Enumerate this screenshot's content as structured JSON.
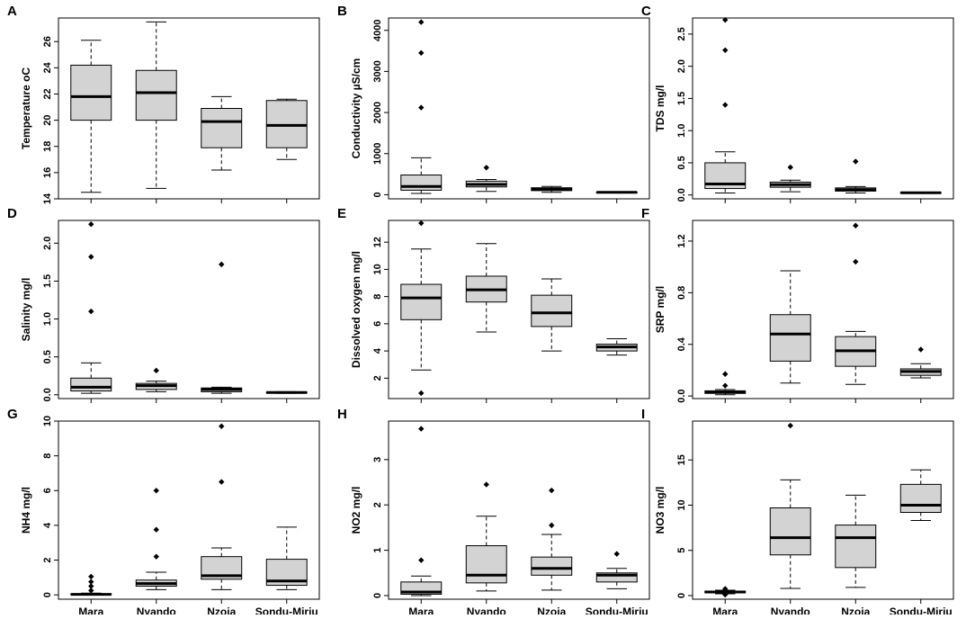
{
  "chart_data": [
    {
      "letter": "A",
      "type": "box",
      "ylabel": "Temperature oC",
      "ylim": [
        14,
        27.8
      ],
      "yticks": [
        14,
        16,
        18,
        20,
        22,
        24,
        26
      ],
      "categories": [
        "Mara",
        "Nyando",
        "Nzoia",
        "Sondu-Miriu"
      ],
      "boxes": [
        {
          "min": 14.5,
          "q1": 20.0,
          "median": 21.8,
          "q3": 24.2,
          "max": 26.1,
          "outliers": []
        },
        {
          "min": 14.8,
          "q1": 20.0,
          "median": 22.1,
          "q3": 23.8,
          "max": 27.5,
          "outliers": []
        },
        {
          "min": 16.2,
          "q1": 17.9,
          "median": 19.9,
          "q3": 20.9,
          "max": 21.8,
          "outliers": []
        },
        {
          "min": 17.0,
          "q1": 17.9,
          "median": 19.6,
          "q3": 21.5,
          "max": 21.6,
          "outliers": []
        }
      ]
    },
    {
      "letter": "B",
      "type": "box",
      "ylabel": "Conductivity µS/cm",
      "ylim": [
        -100,
        4300
      ],
      "yticks": [
        0,
        1000,
        2000,
        3000,
        4000
      ],
      "categories": [
        "Mara",
        "Nyando",
        "Nzoia",
        "Sondu-Miriu"
      ],
      "boxes": [
        {
          "min": 30,
          "q1": 110,
          "median": 200,
          "q3": 480,
          "max": 900,
          "outliers": [
            2120,
            3450,
            4200
          ]
        },
        {
          "min": 80,
          "q1": 190,
          "median": 250,
          "q3": 330,
          "max": 370,
          "outliers": [
            660
          ]
        },
        {
          "min": 60,
          "q1": 100,
          "median": 130,
          "q3": 170,
          "max": 200,
          "outliers": []
        },
        {
          "min": 45,
          "q1": 55,
          "median": 60,
          "q3": 65,
          "max": 72,
          "outliers": []
        }
      ]
    },
    {
      "letter": "C",
      "type": "box",
      "ylabel": "TDS mg/l",
      "ylim": [
        -0.06,
        2.75
      ],
      "yticks": [
        0.0,
        0.5,
        1.0,
        1.5,
        2.0,
        2.5
      ],
      "categories": [
        "Mara",
        "Nyando",
        "Nzoia",
        "Sondu-Miriu"
      ],
      "boxes": [
        {
          "min": 0.03,
          "q1": 0.1,
          "median": 0.17,
          "q3": 0.5,
          "max": 0.67,
          "outliers": [
            1.4,
            2.25,
            2.72
          ]
        },
        {
          "min": 0.05,
          "q1": 0.12,
          "median": 0.16,
          "q3": 0.2,
          "max": 0.23,
          "outliers": [
            0.43
          ]
        },
        {
          "min": 0.03,
          "q1": 0.06,
          "median": 0.08,
          "q3": 0.11,
          "max": 0.13,
          "outliers": [
            0.52
          ]
        },
        {
          "min": 0.025,
          "q1": 0.03,
          "median": 0.035,
          "q3": 0.04,
          "max": 0.045,
          "outliers": []
        }
      ]
    },
    {
      "letter": "D",
      "type": "box",
      "ylabel": "Salinity mg/l",
      "ylim": [
        -0.05,
        2.3
      ],
      "yticks": [
        0.0,
        0.5,
        1.0,
        1.5,
        2.0
      ],
      "categories": [
        "Mara",
        "Nyando",
        "Nzoia",
        "Sondu-Miriu"
      ],
      "boxes": [
        {
          "min": 0.02,
          "q1": 0.05,
          "median": 0.1,
          "q3": 0.22,
          "max": 0.42,
          "outliers": [
            1.1,
            1.82,
            2.25
          ]
        },
        {
          "min": 0.04,
          "q1": 0.07,
          "median": 0.12,
          "q3": 0.15,
          "max": 0.18,
          "outliers": [
            0.32
          ]
        },
        {
          "min": 0.02,
          "q1": 0.04,
          "median": 0.07,
          "q3": 0.09,
          "max": 0.1,
          "outliers": [
            1.72
          ]
        },
        {
          "min": 0.02,
          "q1": 0.025,
          "median": 0.03,
          "q3": 0.035,
          "max": 0.04,
          "outliers": []
        }
      ]
    },
    {
      "letter": "E",
      "type": "box",
      "ylabel": "Dissolved oxygen mg/l",
      "ylim": [
        0.5,
        13.6
      ],
      "yticks": [
        2,
        4,
        6,
        8,
        10,
        12
      ],
      "categories": [
        "Mara",
        "Nyando",
        "Nzoia",
        "Sondu-Miriu"
      ],
      "boxes": [
        {
          "min": 2.6,
          "q1": 6.3,
          "median": 7.9,
          "q3": 8.9,
          "max": 11.5,
          "outliers": [
            0.9,
            13.4
          ]
        },
        {
          "min": 5.4,
          "q1": 7.6,
          "median": 8.5,
          "q3": 9.5,
          "max": 11.9,
          "outliers": []
        },
        {
          "min": 4.0,
          "q1": 5.8,
          "median": 6.8,
          "q3": 8.1,
          "max": 9.3,
          "outliers": []
        },
        {
          "min": 3.7,
          "q1": 4.0,
          "median": 4.3,
          "q3": 4.5,
          "max": 4.9,
          "outliers": []
        }
      ]
    },
    {
      "letter": "F",
      "type": "box",
      "ylabel": "SRP mg/l",
      "ylim": [
        -0.02,
        1.36
      ],
      "yticks": [
        0.0,
        0.4,
        0.8,
        1.2
      ],
      "categories": [
        "Mara",
        "Nyando",
        "Nzoia",
        "Sondu-Miriu"
      ],
      "boxes": [
        {
          "min": 0.01,
          "q1": 0.02,
          "median": 0.03,
          "q3": 0.04,
          "max": 0.05,
          "outliers": [
            0.08,
            0.17
          ]
        },
        {
          "min": 0.1,
          "q1": 0.27,
          "median": 0.48,
          "q3": 0.63,
          "max": 0.97,
          "outliers": []
        },
        {
          "min": 0.09,
          "q1": 0.23,
          "median": 0.35,
          "q3": 0.46,
          "max": 0.5,
          "outliers": [
            1.04,
            1.32
          ]
        },
        {
          "min": 0.14,
          "q1": 0.16,
          "median": 0.19,
          "q3": 0.21,
          "max": 0.25,
          "outliers": [
            0.36
          ]
        }
      ]
    },
    {
      "letter": "G",
      "type": "box",
      "ylabel": "NH4 mg/l",
      "ylim": [
        -0.25,
        10
      ],
      "yticks": [
        0,
        2,
        4,
        6,
        8,
        10
      ],
      "categories": [
        "Mara",
        "Nyando",
        "Nzoia",
        "Sondu-Miriu"
      ],
      "boxes": [
        {
          "min": 0.0,
          "q1": 0.01,
          "median": 0.03,
          "q3": 0.06,
          "max": 0.1,
          "outliers": [
            0.25,
            0.5,
            0.75,
            1.05
          ]
        },
        {
          "min": 0.3,
          "q1": 0.5,
          "median": 0.65,
          "q3": 0.85,
          "max": 1.3,
          "outliers": [
            2.2,
            3.75,
            6.0
          ]
        },
        {
          "min": 0.3,
          "q1": 0.9,
          "median": 1.1,
          "q3": 2.2,
          "max": 2.7,
          "outliers": [
            6.5,
            9.7
          ]
        },
        {
          "min": 0.3,
          "q1": 0.55,
          "median": 0.8,
          "q3": 2.05,
          "max": 3.9,
          "outliers": []
        }
      ]
    },
    {
      "letter": "H",
      "type": "box",
      "ylabel": "NO2 mg/l",
      "ylim": [
        -0.08,
        3.85
      ],
      "yticks": [
        0,
        1,
        2,
        3
      ],
      "categories": [
        "Mara",
        "Nyando",
        "Nzoia",
        "Sondu-Miriu"
      ],
      "boxes": [
        {
          "min": 0.0,
          "q1": 0.03,
          "median": 0.08,
          "q3": 0.3,
          "max": 0.43,
          "outliers": [
            0.78,
            3.68
          ]
        },
        {
          "min": 0.1,
          "q1": 0.28,
          "median": 0.45,
          "q3": 1.1,
          "max": 1.75,
          "outliers": [
            2.45
          ]
        },
        {
          "min": 0.12,
          "q1": 0.45,
          "median": 0.6,
          "q3": 0.85,
          "max": 1.35,
          "outliers": [
            1.55,
            2.32
          ]
        },
        {
          "min": 0.15,
          "q1": 0.3,
          "median": 0.45,
          "q3": 0.5,
          "max": 0.6,
          "outliers": [
            0.92
          ]
        }
      ]
    },
    {
      "letter": "I",
      "type": "box",
      "ylabel": "NO3 mg/l",
      "ylim": [
        -0.4,
        19.3
      ],
      "yticks": [
        0,
        5,
        10,
        15
      ],
      "categories": [
        "Mara",
        "Nyando",
        "Nzoia",
        "Sondu-Miriu"
      ],
      "boxes": [
        {
          "min": 0.2,
          "q1": 0.3,
          "median": 0.4,
          "q3": 0.5,
          "max": 0.6,
          "outliers": [
            0.1,
            0.75
          ]
        },
        {
          "min": 0.8,
          "q1": 4.5,
          "median": 6.4,
          "q3": 9.7,
          "max": 12.8,
          "outliers": [
            18.8
          ]
        },
        {
          "min": 0.9,
          "q1": 3.1,
          "median": 6.4,
          "q3": 7.8,
          "max": 11.1,
          "outliers": []
        },
        {
          "min": 8.3,
          "q1": 9.2,
          "median": 10.0,
          "q3": 12.3,
          "max": 13.9,
          "outliers": []
        }
      ]
    }
  ],
  "style": {
    "box_fill": "#d3d3d3",
    "stroke": "#000000"
  }
}
